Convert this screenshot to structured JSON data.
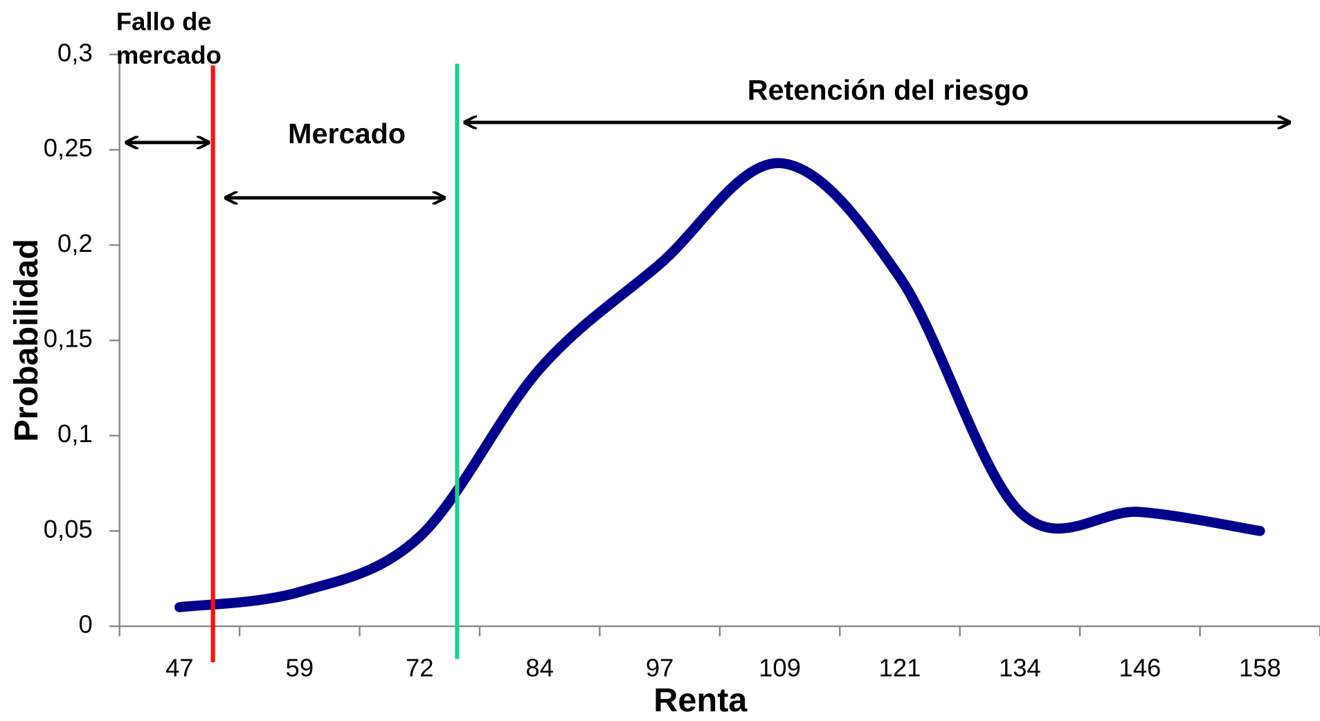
{
  "chart_data": {
    "type": "line",
    "categories": [
      "47",
      "59",
      "72",
      "84",
      "97",
      "109",
      "121",
      "134",
      "146",
      "158"
    ],
    "series": [
      {
        "name": "Probabilidad",
        "color": "#00008b",
        "values": [
          0.01,
          0.018,
          0.047,
          0.135,
          0.19,
          0.243,
          0.183,
          0.06,
          0.06,
          0.05
        ]
      }
    ],
    "ylim": [
      0,
      0.3
    ],
    "yticks": [
      0,
      {
        "value": 0.05,
        "label": "0,05"
      },
      {
        "value": 0.1,
        "label": "0,1"
      },
      {
        "value": 0.15,
        "label": "0,15"
      },
      {
        "value": 0.2,
        "label": "0,2"
      },
      {
        "value": 0.25,
        "label": "0,25"
      },
      {
        "value": 0.3,
        "label": "0,3"
      }
    ],
    "x_label": "Renta",
    "y_label": "Probabilidad",
    "annotations": [
      "Fallo de",
      "mercado",
      "Mercado",
      "Retención del riesgo"
    ]
  }
}
